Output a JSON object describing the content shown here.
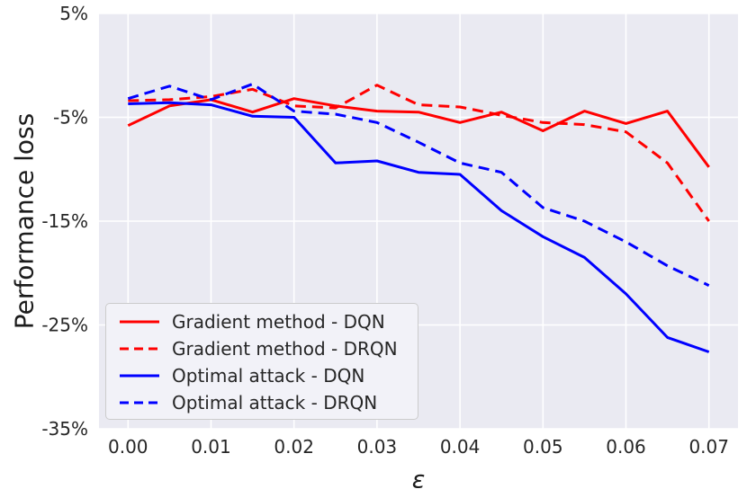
{
  "chart_data": {
    "type": "line",
    "title": "",
    "xlabel": "ε",
    "ylabel": "Performance loss",
    "grid": true,
    "legend_position": "lower left",
    "xlim": [
      -0.0035,
      0.0735
    ],
    "ylim": [
      -35,
      5
    ],
    "x": [
      0.0,
      0.005,
      0.01,
      0.015,
      0.02,
      0.025,
      0.03,
      0.035,
      0.04,
      0.045,
      0.05,
      0.055,
      0.06,
      0.065,
      0.07
    ],
    "xticks": {
      "values": [
        0.0,
        0.01,
        0.02,
        0.03,
        0.04,
        0.05,
        0.06,
        0.07
      ],
      "labels": [
        "0.00",
        "0.01",
        "0.02",
        "0.03",
        "0.04",
        "0.05",
        "0.06",
        "0.07"
      ]
    },
    "yticks": {
      "values": [
        5,
        -5,
        -15,
        -25,
        -35
      ],
      "labels": [
        "5%",
        "-5%",
        "-15%",
        "-25%",
        "-35%"
      ]
    },
    "unit": "%",
    "series": [
      {
        "name": "Gradient method - DQN",
        "color": "#ff0000",
        "style": "solid",
        "values": [
          -5.8,
          -3.9,
          -3.3,
          -4.5,
          -3.2,
          -3.9,
          -4.4,
          -4.5,
          -5.5,
          -4.5,
          -6.3,
          -4.4,
          -5.6,
          -4.4,
          -9.8
        ]
      },
      {
        "name": "Gradient method - DRQN",
        "color": "#ff0000",
        "style": "dashed",
        "values": [
          -3.4,
          -3.3,
          -3.0,
          -2.3,
          -3.9,
          -4.1,
          -1.9,
          -3.8,
          -4.0,
          -4.8,
          -5.5,
          -5.7,
          -6.4,
          -9.4,
          -15.0
        ]
      },
      {
        "name": "Optimal attack - DQN",
        "color": "#0000ff",
        "style": "solid",
        "values": [
          -3.7,
          -3.6,
          -3.8,
          -4.9,
          -5.0,
          -9.4,
          -9.2,
          -10.3,
          -10.5,
          -14.0,
          -16.5,
          -18.5,
          -22.0,
          -26.2,
          -27.6
        ]
      },
      {
        "name": "Optimal attack - DRQN",
        "color": "#0000ff",
        "style": "dashed",
        "values": [
          -3.2,
          -2.0,
          -3.3,
          -1.8,
          -4.4,
          -4.7,
          -5.5,
          -7.4,
          -9.4,
          -10.3,
          -13.7,
          -15.0,
          -17.0,
          -19.3,
          -21.2
        ]
      }
    ],
    "colors": {
      "plot_bg": "#eaeaf2",
      "grid": "#ffffff",
      "text": "#262626"
    }
  }
}
